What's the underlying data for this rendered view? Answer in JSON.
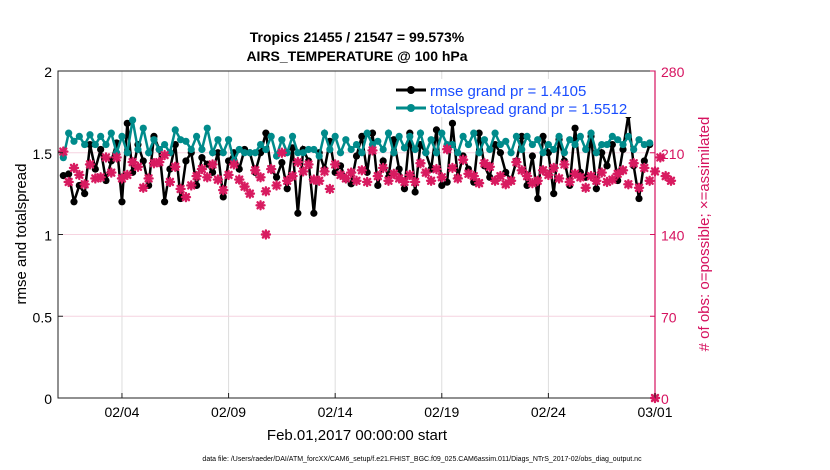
{
  "chart_data": {
    "type": "line",
    "title": [
      "Tropics 21455 / 21547 = 99.573%",
      "AIRS_TEMPERATURE @ 100 hPa"
    ],
    "xlabel": "Feb.01,2017 00:00:00 start",
    "ylabel": "rmse and totalspread",
    "ylabel_right": "# of obs: o=possible; ×=assimilated",
    "xlim_days": [
      0,
      28
    ],
    "ylim": [
      0,
      2
    ],
    "ylim_right": [
      0,
      280
    ],
    "x_ticks": [
      {
        "day": 3,
        "label": "02/04"
      },
      {
        "day": 8,
        "label": "02/09"
      },
      {
        "day": 13,
        "label": "02/14"
      },
      {
        "day": 18,
        "label": "02/19"
      },
      {
        "day": 23,
        "label": "02/24"
      },
      {
        "day": 28,
        "label": "03/01"
      }
    ],
    "y_ticks": [
      "0",
      "0.5",
      "1",
      "1.5",
      "2"
    ],
    "y_ticks_right": [
      "0",
      "70",
      "140",
      "210",
      "280"
    ],
    "x_start_day": 0.25,
    "x_step_day": 0.25,
    "legend": {
      "placement": "top-right",
      "entries": [
        "rmse grand pr = 1.4105",
        "totalspread grand pr = 1.5512"
      ]
    },
    "series": [
      {
        "name": "rmse",
        "color": "#000000",
        "axis": "left",
        "values": [
          1.36,
          1.37,
          1.2,
          1.3,
          1.25,
          1.55,
          1.4,
          1.52,
          1.33,
          1.45,
          1.56,
          1.2,
          1.68,
          1.38,
          1.55,
          1.45,
          1.3,
          1.6,
          1.52,
          1.2,
          1.4,
          1.55,
          1.22,
          1.45,
          1.5,
          1.3,
          1.47,
          1.43,
          1.38,
          1.5,
          1.23,
          1.45,
          1.5,
          1.4,
          1.52,
          1.5,
          1.38,
          1.5,
          1.62,
          1.4,
          1.35,
          1.44,
          1.28,
          1.53,
          1.13,
          1.52,
          1.45,
          1.13,
          1.5,
          1.4,
          1.57,
          1.38,
          1.42,
          1.34,
          1.31,
          1.48,
          1.6,
          1.38,
          1.62,
          1.3,
          1.45,
          1.35,
          1.58,
          1.4,
          1.28,
          1.62,
          1.26,
          1.55,
          1.5,
          1.4,
          1.64,
          1.3,
          1.32,
          1.68,
          1.35,
          1.48,
          1.4,
          1.32,
          1.62,
          1.42,
          1.35,
          1.55,
          1.5,
          1.38,
          1.33,
          1.45,
          1.6,
          1.3,
          1.48,
          1.22,
          1.6,
          1.5,
          1.25,
          1.58,
          1.45,
          1.3,
          1.65,
          1.38,
          1.35,
          1.6,
          1.28,
          1.5,
          1.42,
          1.55,
          1.33,
          1.52,
          1.73,
          1.42,
          1.22,
          1.45,
          1.55
        ]
      },
      {
        "name": "totalspread",
        "color": "#008b8b",
        "axis": "left",
        "values": [
          1.47,
          1.62,
          1.57,
          1.6,
          1.55,
          1.61,
          1.55,
          1.6,
          1.55,
          1.62,
          1.5,
          1.6,
          1.5,
          1.7,
          1.52,
          1.65,
          1.5,
          1.58,
          1.52,
          1.55,
          1.5,
          1.64,
          1.58,
          1.57,
          1.52,
          1.6,
          1.52,
          1.65,
          1.5,
          1.58,
          1.5,
          1.58,
          1.45,
          1.52,
          1.5,
          1.5,
          1.5,
          1.55,
          1.52,
          1.6,
          1.48,
          1.58,
          1.5,
          1.6,
          1.5,
          1.5,
          1.52,
          1.52,
          1.48,
          1.62,
          1.52,
          1.6,
          1.5,
          1.58,
          1.52,
          1.55,
          1.5,
          1.62,
          1.55,
          1.57,
          1.52,
          1.62,
          1.5,
          1.6,
          1.53,
          1.6,
          1.52,
          1.62,
          1.5,
          1.58,
          1.5,
          1.62,
          1.55,
          1.55,
          1.5,
          1.6,
          1.55,
          1.62,
          1.5,
          1.58,
          1.52,
          1.62,
          1.55,
          1.57,
          1.5,
          1.6,
          1.52,
          1.6,
          1.55,
          1.58,
          1.5,
          1.55,
          1.52,
          1.6,
          1.5,
          1.58,
          1.55,
          1.6,
          1.52,
          1.62,
          1.5,
          1.55,
          1.55,
          1.6,
          1.58,
          1.55,
          1.6,
          1.52,
          1.58,
          1.55,
          1.56
        ]
      },
      {
        "name": "assimilated obs",
        "color": "#d81b60",
        "axis": "right",
        "values": [
          211,
          185,
          197,
          191,
          183,
          200,
          188,
          189,
          206,
          193,
          206,
          188,
          191,
          202,
          198,
          180,
          188,
          201,
          202,
          208,
          185,
          198,
          179,
          172,
          182,
          190,
          196,
          189,
          200,
          187,
          178,
          191,
          200,
          187,
          181,
          175,
          195,
          189,
          177,
          196,
          182,
          210,
          186,
          190,
          202,
          194,
          200,
          187,
          186,
          194,
          179,
          200,
          191,
          188,
          193,
          186,
          195,
          185,
          212,
          190,
          197,
          186,
          192,
          188,
          185,
          191,
          185,
          201,
          193,
          186,
          196,
          189,
          213,
          197,
          188,
          204,
          192,
          190,
          184,
          201,
          198,
          186,
          190,
          183,
          186,
          202,
          195,
          190,
          184,
          186,
          195,
          191,
          197,
          188,
          200,
          185,
          192,
          189,
          180,
          190,
          186,
          193,
          185,
          187,
          192,
          195,
          183,
          201,
          180,
          197,
          186,
          194,
          206,
          190,
          186
        ]
      },
      {
        "name": "possible obs",
        "color": "#d81b60",
        "axis": "right",
        "points": [
          {
            "day": 9.5,
            "value": 165
          },
          {
            "day": 9.75,
            "value": 140
          },
          {
            "day": 28,
            "value": 0
          }
        ]
      }
    ]
  },
  "footer": "data file: /Users/raeder/DAI/ATM_forcXX/CAM6_setup/f.e21.FHIST_BGC.f09_025.CAM6assim.011/Diags_NTrS_2017-02/obs_diag_output.nc"
}
